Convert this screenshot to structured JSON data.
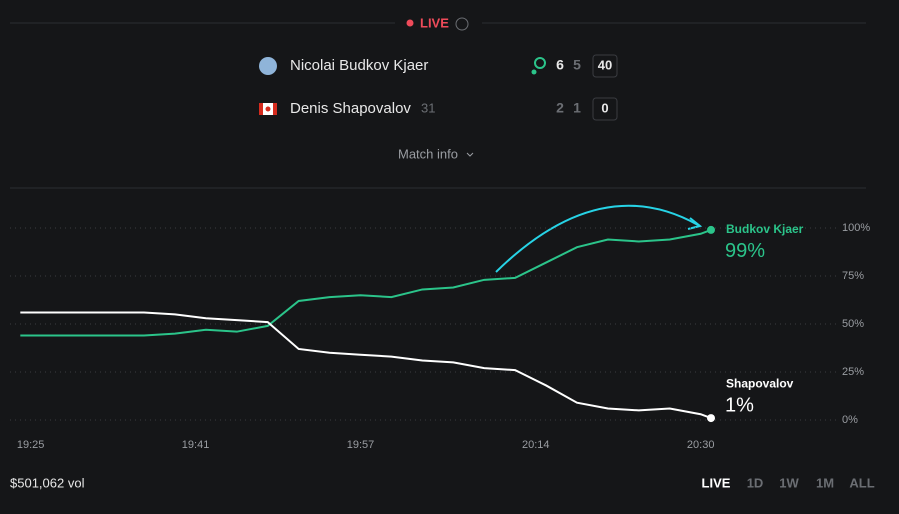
{
  "header": {
    "status": "LIVE"
  },
  "players": [
    {
      "name": "Nicolai Budkov Kjaer",
      "sets": [
        6,
        5
      ],
      "points": 40
    },
    {
      "name": "Denis Shapovalov",
      "rank": 31,
      "sets": [
        2,
        1
      ],
      "points": 0
    }
  ],
  "match_info": "Match info",
  "chart_data": {
    "type": "line",
    "x": [
      "19:24",
      "19:27",
      "19:30",
      "19:33",
      "19:36",
      "19:39",
      "19:42",
      "19:45",
      "19:48",
      "19:51",
      "19:54",
      "19:57",
      "20:00",
      "20:03",
      "20:06",
      "20:09",
      "20:12",
      "20:15",
      "20:18",
      "20:21",
      "20:24",
      "20:27",
      "20:30",
      "20:31"
    ],
    "xlim": [
      "19:23",
      "20:31"
    ],
    "xticks": [
      "19:25",
      "19:41",
      "19:57",
      "20:14",
      "20:30"
    ],
    "ylim": [
      0,
      100
    ],
    "yticks": [
      {
        "value": 0,
        "label": "0%"
      },
      {
        "value": 25,
        "label": "25%"
      },
      {
        "value": 50,
        "label": "50%"
      },
      {
        "value": 75,
        "label": "75%"
      },
      {
        "value": 100,
        "label": "100%"
      }
    ],
    "grid": true,
    "series": [
      {
        "name": "Budkov Kjaer",
        "color": "#2bc48a",
        "values": [
          44,
          44,
          44,
          44,
          44,
          45,
          47,
          46,
          49,
          62,
          64,
          65,
          64,
          68,
          69,
          73,
          74,
          82,
          90,
          94,
          93,
          94,
          97,
          99
        ],
        "value_labels": [
          null,
          null,
          null,
          null,
          null,
          null,
          null,
          null,
          null,
          null,
          null,
          null,
          null,
          null,
          null,
          null,
          null,
          null,
          null,
          null,
          null,
          null,
          null,
          "99%"
        ]
      },
      {
        "name": "Shapovalov",
        "color": "#ffffff",
        "values": [
          56,
          56,
          56,
          56,
          56,
          55,
          53,
          52,
          51,
          37,
          35,
          34,
          33,
          31,
          30,
          27,
          26,
          18,
          9,
          6,
          5,
          6,
          3,
          1
        ],
        "value_labels": [
          null,
          null,
          null,
          null,
          null,
          null,
          null,
          null,
          null,
          null,
          null,
          null,
          null,
          null,
          null,
          null,
          null,
          null,
          null,
          null,
          null,
          null,
          null,
          "1%"
        ]
      }
    ]
  },
  "volume": "$501,062 vol",
  "ranges": [
    "LIVE",
    "1D",
    "1W",
    "1M",
    "ALL"
  ]
}
